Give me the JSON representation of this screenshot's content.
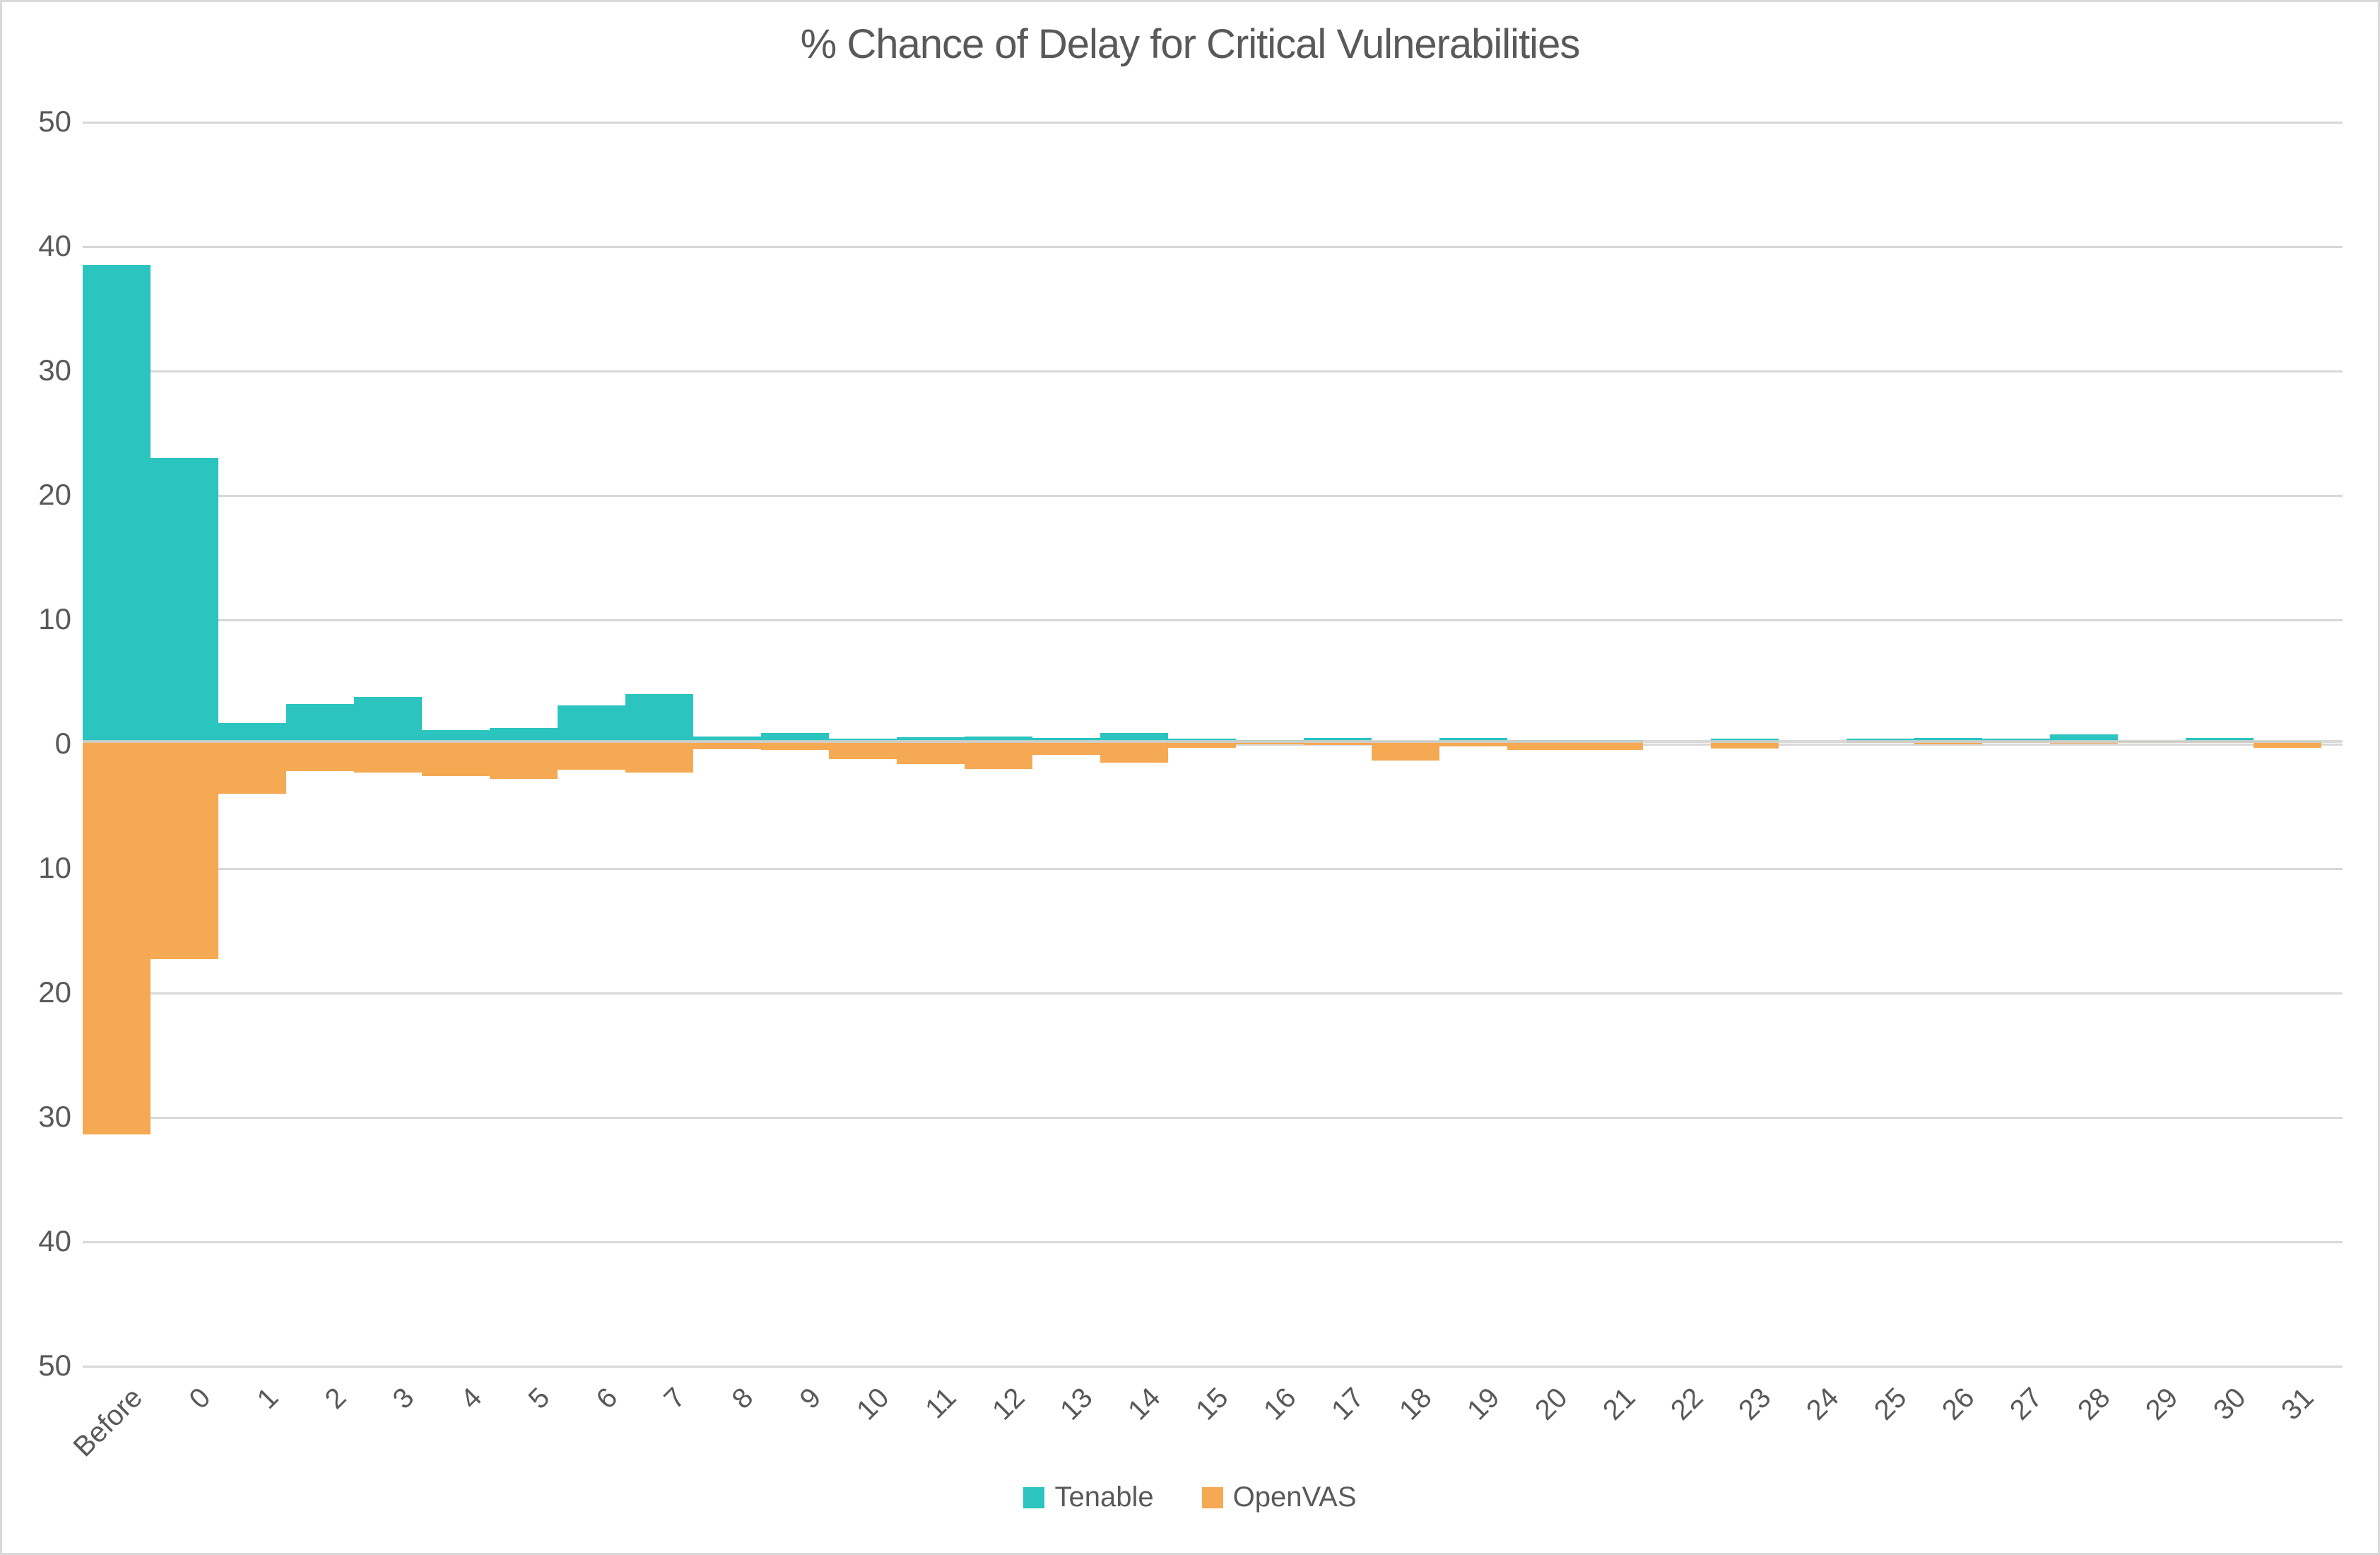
{
  "page": {
    "background": "#FFFFFF",
    "border_color": "#D9D9D9",
    "text_color": "#595959",
    "gridline_color": "#D8D8D8"
  },
  "chart_data": {
    "type": "bar",
    "subtype": "diverging-vertical-histogram",
    "title": "% Chance of Delay for Critical Vulnerabilities",
    "xlabel": "",
    "ylabel": "",
    "ylim": [
      -50,
      50
    ],
    "grid": true,
    "legend_position": "bottom-center",
    "y_tick_labels": [
      "50",
      "40",
      "30",
      "20",
      "10",
      "0",
      "10",
      "20",
      "30",
      "40",
      "50"
    ],
    "categories": [
      "Before",
      "0",
      "1",
      "2",
      "3",
      "4",
      "5",
      "6",
      "7",
      "8",
      "9",
      "10",
      "11",
      "12",
      "13",
      "14",
      "15",
      "16",
      "17",
      "18",
      "19",
      "20",
      "21",
      "22",
      "23",
      "24",
      "25",
      "26",
      "27",
      "28",
      "29",
      "30",
      "31"
    ],
    "series": [
      {
        "name": "Tenable",
        "color": "#2BC4BF",
        "direction": "up",
        "values": [
          38.3,
          22.8,
          1.5,
          3.0,
          3.6,
          0.9,
          1.1,
          2.9,
          3.8,
          0.4,
          0.7,
          0.25,
          0.35,
          0.4,
          0.3,
          0.7,
          0.2,
          0.1,
          0.3,
          0.05,
          0.3,
          0.1,
          0.1,
          0,
          0.25,
          0,
          0.2,
          0.3,
          0.25,
          0.55,
          0.05,
          0.3,
          0.05
        ]
      },
      {
        "name": "OpenVAS",
        "color": "#F5A953",
        "direction": "down",
        "values": [
          31.6,
          17.5,
          4.2,
          2.4,
          2.5,
          2.8,
          3.0,
          2.3,
          2.5,
          0.6,
          0.7,
          1.4,
          1.8,
          2.2,
          1.1,
          1.7,
          0.5,
          0.25,
          0.3,
          1.55,
          0.4,
          0.7,
          0.7,
          0,
          0.55,
          0,
          0.1,
          0.25,
          0.1,
          0.15,
          0.1,
          0.1,
          0.5
        ]
      }
    ]
  }
}
